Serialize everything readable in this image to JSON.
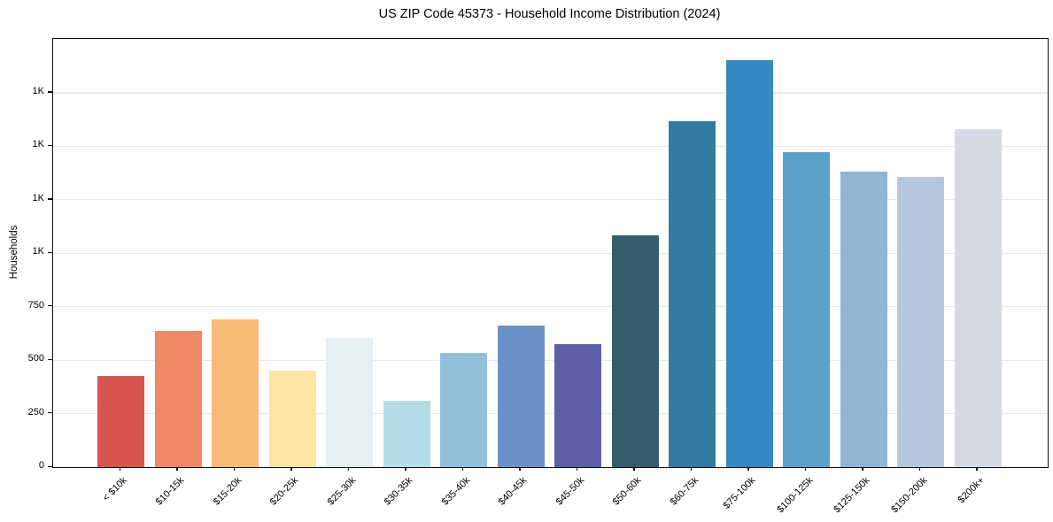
{
  "chart_data": {
    "type": "bar",
    "title": "US ZIP Code 45373 - Household Income Distribution (2024)",
    "xlabel": "",
    "ylabel": "Households",
    "ylim": [
      0,
      2000
    ],
    "grid": "horizontal-light-gray",
    "legend": "none",
    "background": "#ffffff",
    "x_tick_rotation_deg": 45,
    "categories": [
      "< $10k",
      "$10-15k",
      "$15-20k",
      "$20-25k",
      "$25-30k",
      "$30-35k",
      "$35-40k",
      "$40-45k",
      "$45-50k",
      "$50-60k",
      "$60-75k",
      "$75-100k",
      "$100-125k",
      "$125-150k",
      "$150-200k",
      "$200k+"
    ],
    "values": [
      425,
      635,
      690,
      450,
      600,
      310,
      530,
      660,
      575,
      1080,
      1615,
      1900,
      1470,
      1380,
      1355,
      1580
    ],
    "bar_colors": [
      "#d6554f",
      "#f08765",
      "#fbbb78",
      "#fde5a6",
      "#e3f1f2",
      "#b5dce9",
      "#92bfdc",
      "#6a92c7",
      "#5d5fa9",
      "#355d6e",
      "#337aa3",
      "#3689c0",
      "#5ba2c9",
      "#8fb5d3",
      "#b6c6dc",
      "#d6d9e6"
    ],
    "y_ticks": [
      {
        "value": 0,
        "label": "0"
      },
      {
        "value": 250,
        "label": "250"
      },
      {
        "value": 500,
        "label": "500"
      },
      {
        "value": 750,
        "label": "750"
      },
      {
        "value": 1000,
        "label": "1K"
      },
      {
        "value": 1250,
        "label": "1K"
      },
      {
        "value": 1500,
        "label": "1K"
      },
      {
        "value": 1750,
        "label": "1K"
      }
    ]
  }
}
